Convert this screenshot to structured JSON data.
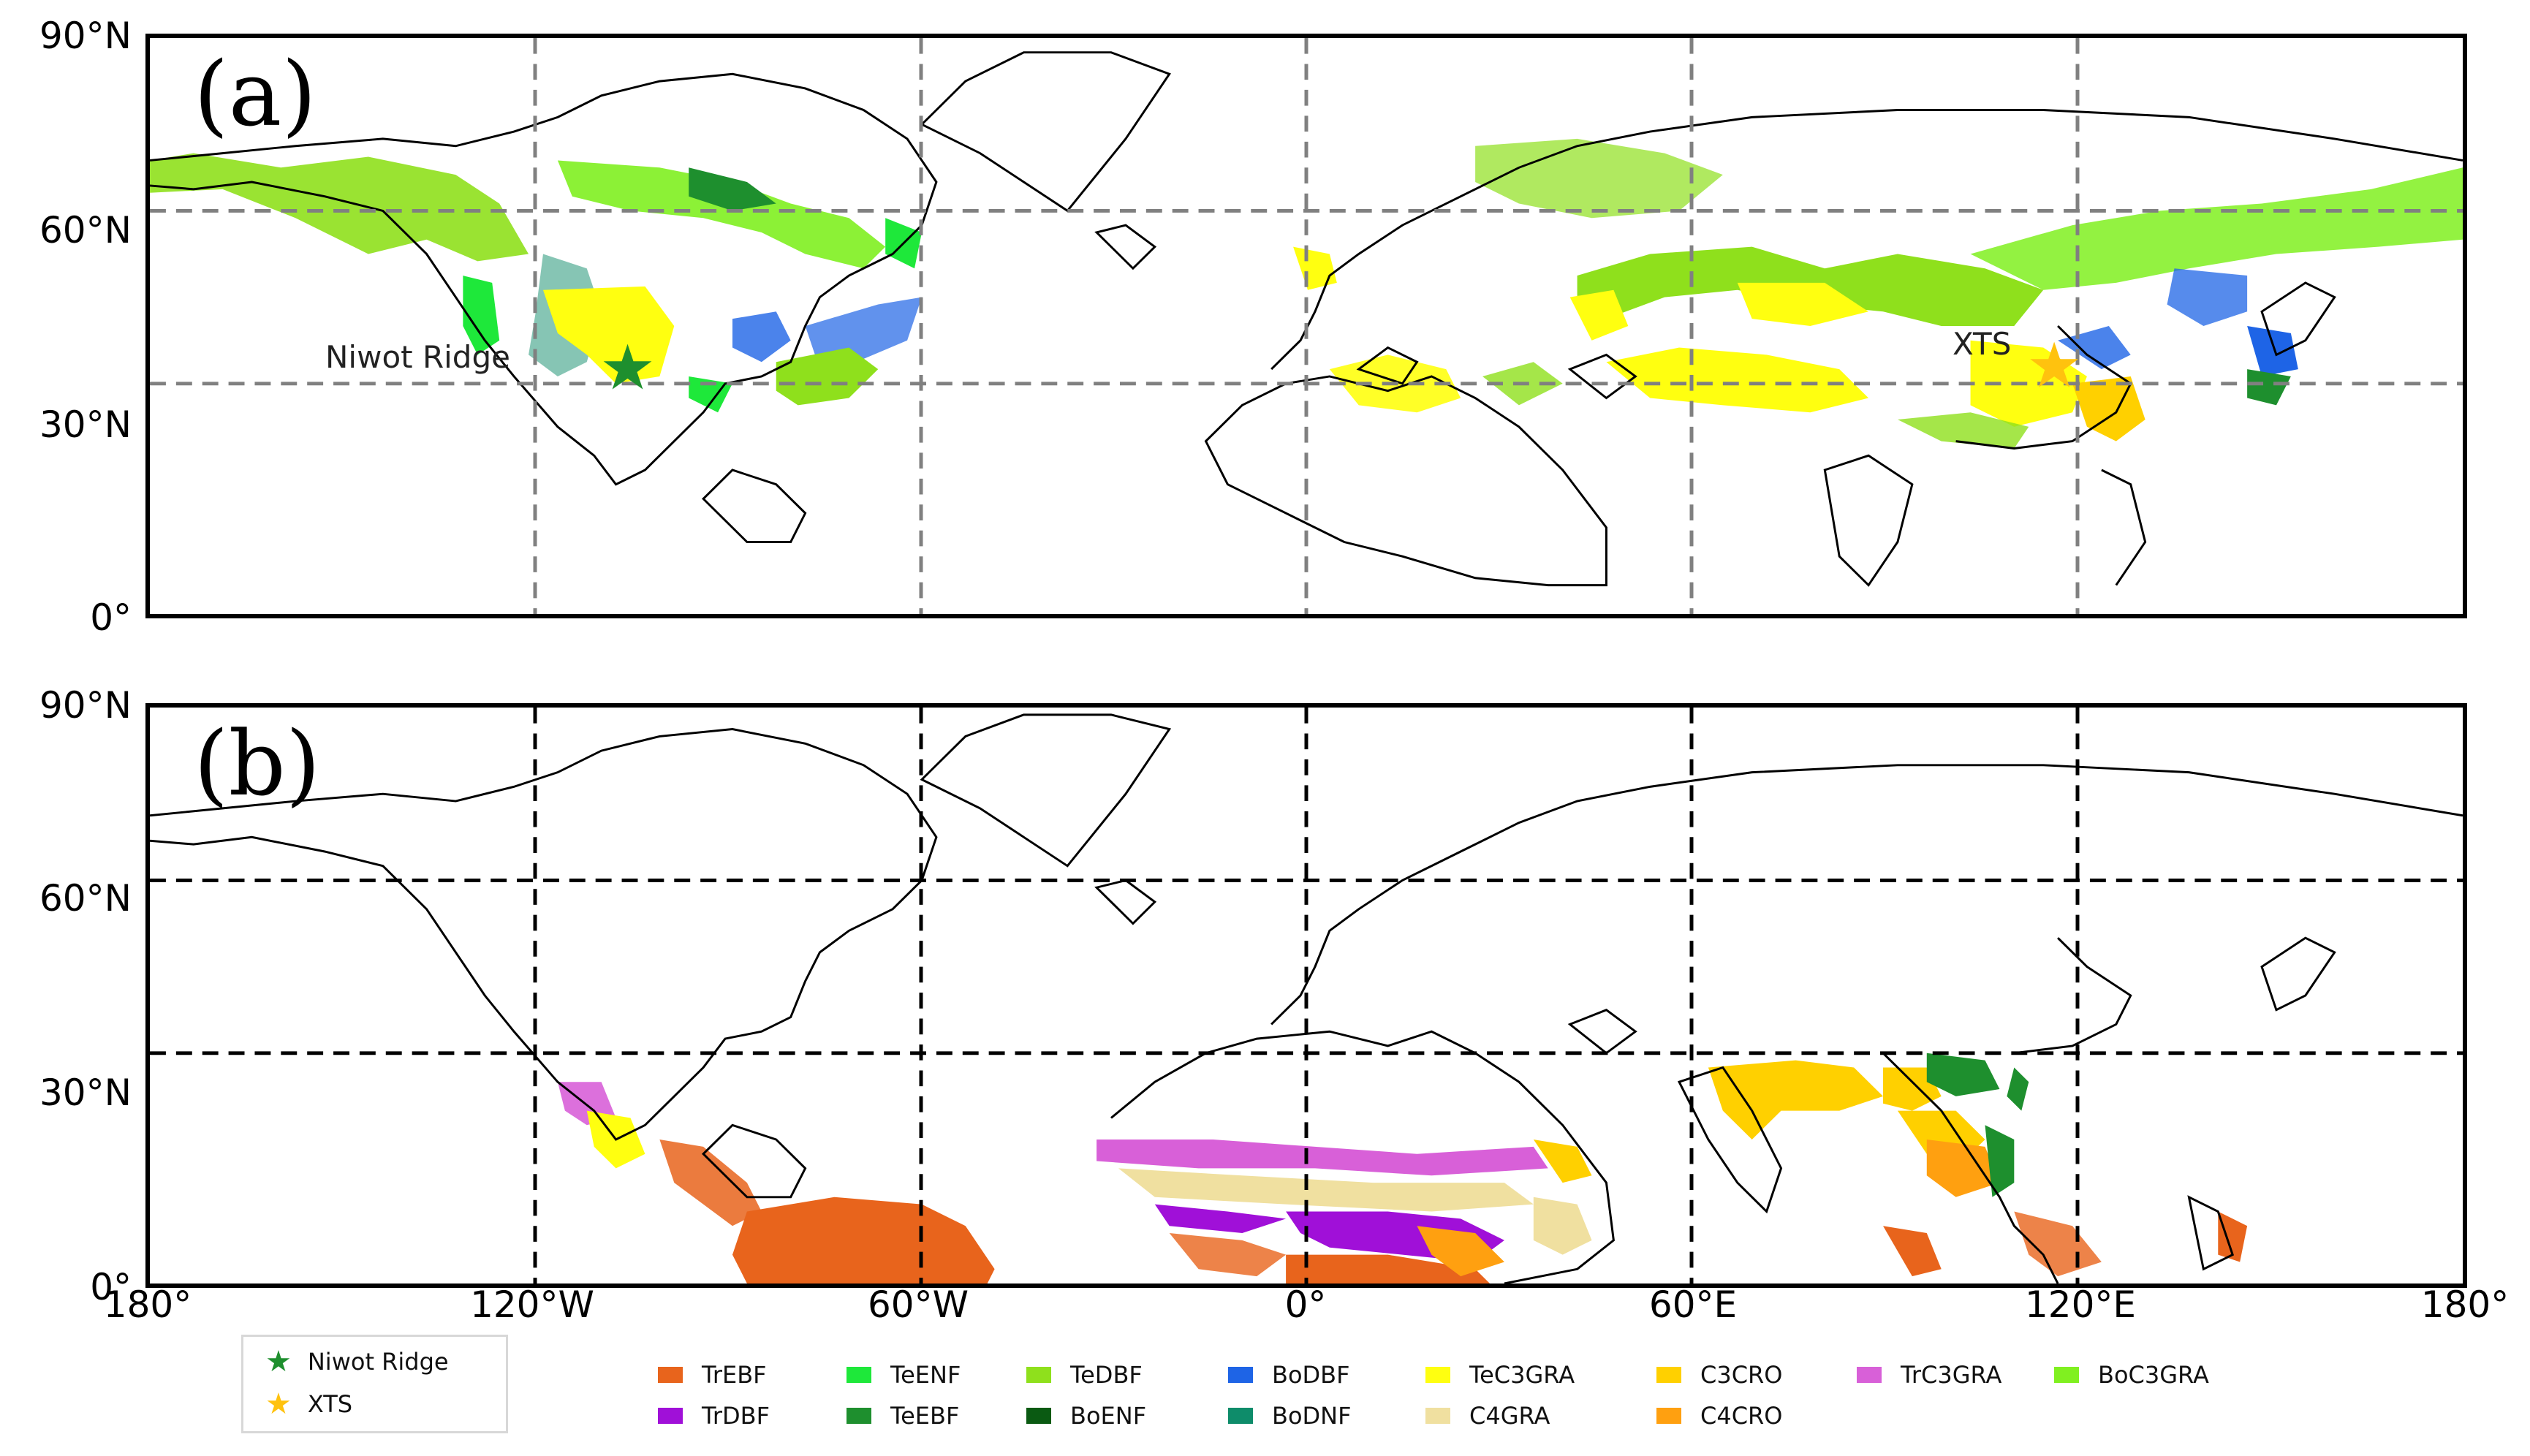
{
  "panels": [
    {
      "label": "(a)",
      "lat_ticks": [
        "90°N",
        "60°N",
        "30°N",
        "0°"
      ]
    },
    {
      "label": "(b)",
      "lat_ticks": [
        "90°N",
        "60°N",
        "30°N",
        "0°"
      ]
    }
  ],
  "lon_ticks": [
    "180°",
    "120°W",
    "60°W",
    "0°",
    "60°E",
    "120°E",
    "180°"
  ],
  "sites": [
    {
      "name": "Niwot Ridge",
      "lon": -105.5,
      "lat": 40.0,
      "color": "#1e8f2e"
    },
    {
      "name": "XTS",
      "lon": 116.5,
      "lat": 40.5,
      "color": "#ffc20e"
    }
  ],
  "site_legend": [
    {
      "label": "Niwot Ridge",
      "color": "#1e8f2e"
    },
    {
      "label": "XTS",
      "color": "#ffc20e"
    }
  ],
  "pft_legend": [
    {
      "label": "TrEBF",
      "color": "#e8641c"
    },
    {
      "label": "TeENF",
      "color": "#1ee83a"
    },
    {
      "label": "TeDBF",
      "color": "#8fe01c"
    },
    {
      "label": "BoDBF",
      "color": "#1e64e6"
    },
    {
      "label": "TeC3GRA",
      "color": "#ffff10"
    },
    {
      "label": "C3CRO",
      "color": "#ffd000"
    },
    {
      "label": "TrC3GRA",
      "color": "#d860d8"
    },
    {
      "label": "BoC3GRA",
      "color": "#80f020"
    },
    {
      "label": "TrDBF",
      "color": "#a010d8"
    },
    {
      "label": "TeEBF",
      "color": "#1e8f2e"
    },
    {
      "label": "BoENF",
      "color": "#0a5a12"
    },
    {
      "label": "BoDNF",
      "color": "#0e8c6a"
    },
    {
      "label": "C4GRA",
      "color": "#f0e0a0"
    },
    {
      "label": "C4CRO",
      "color": "#ffa010"
    }
  ]
}
